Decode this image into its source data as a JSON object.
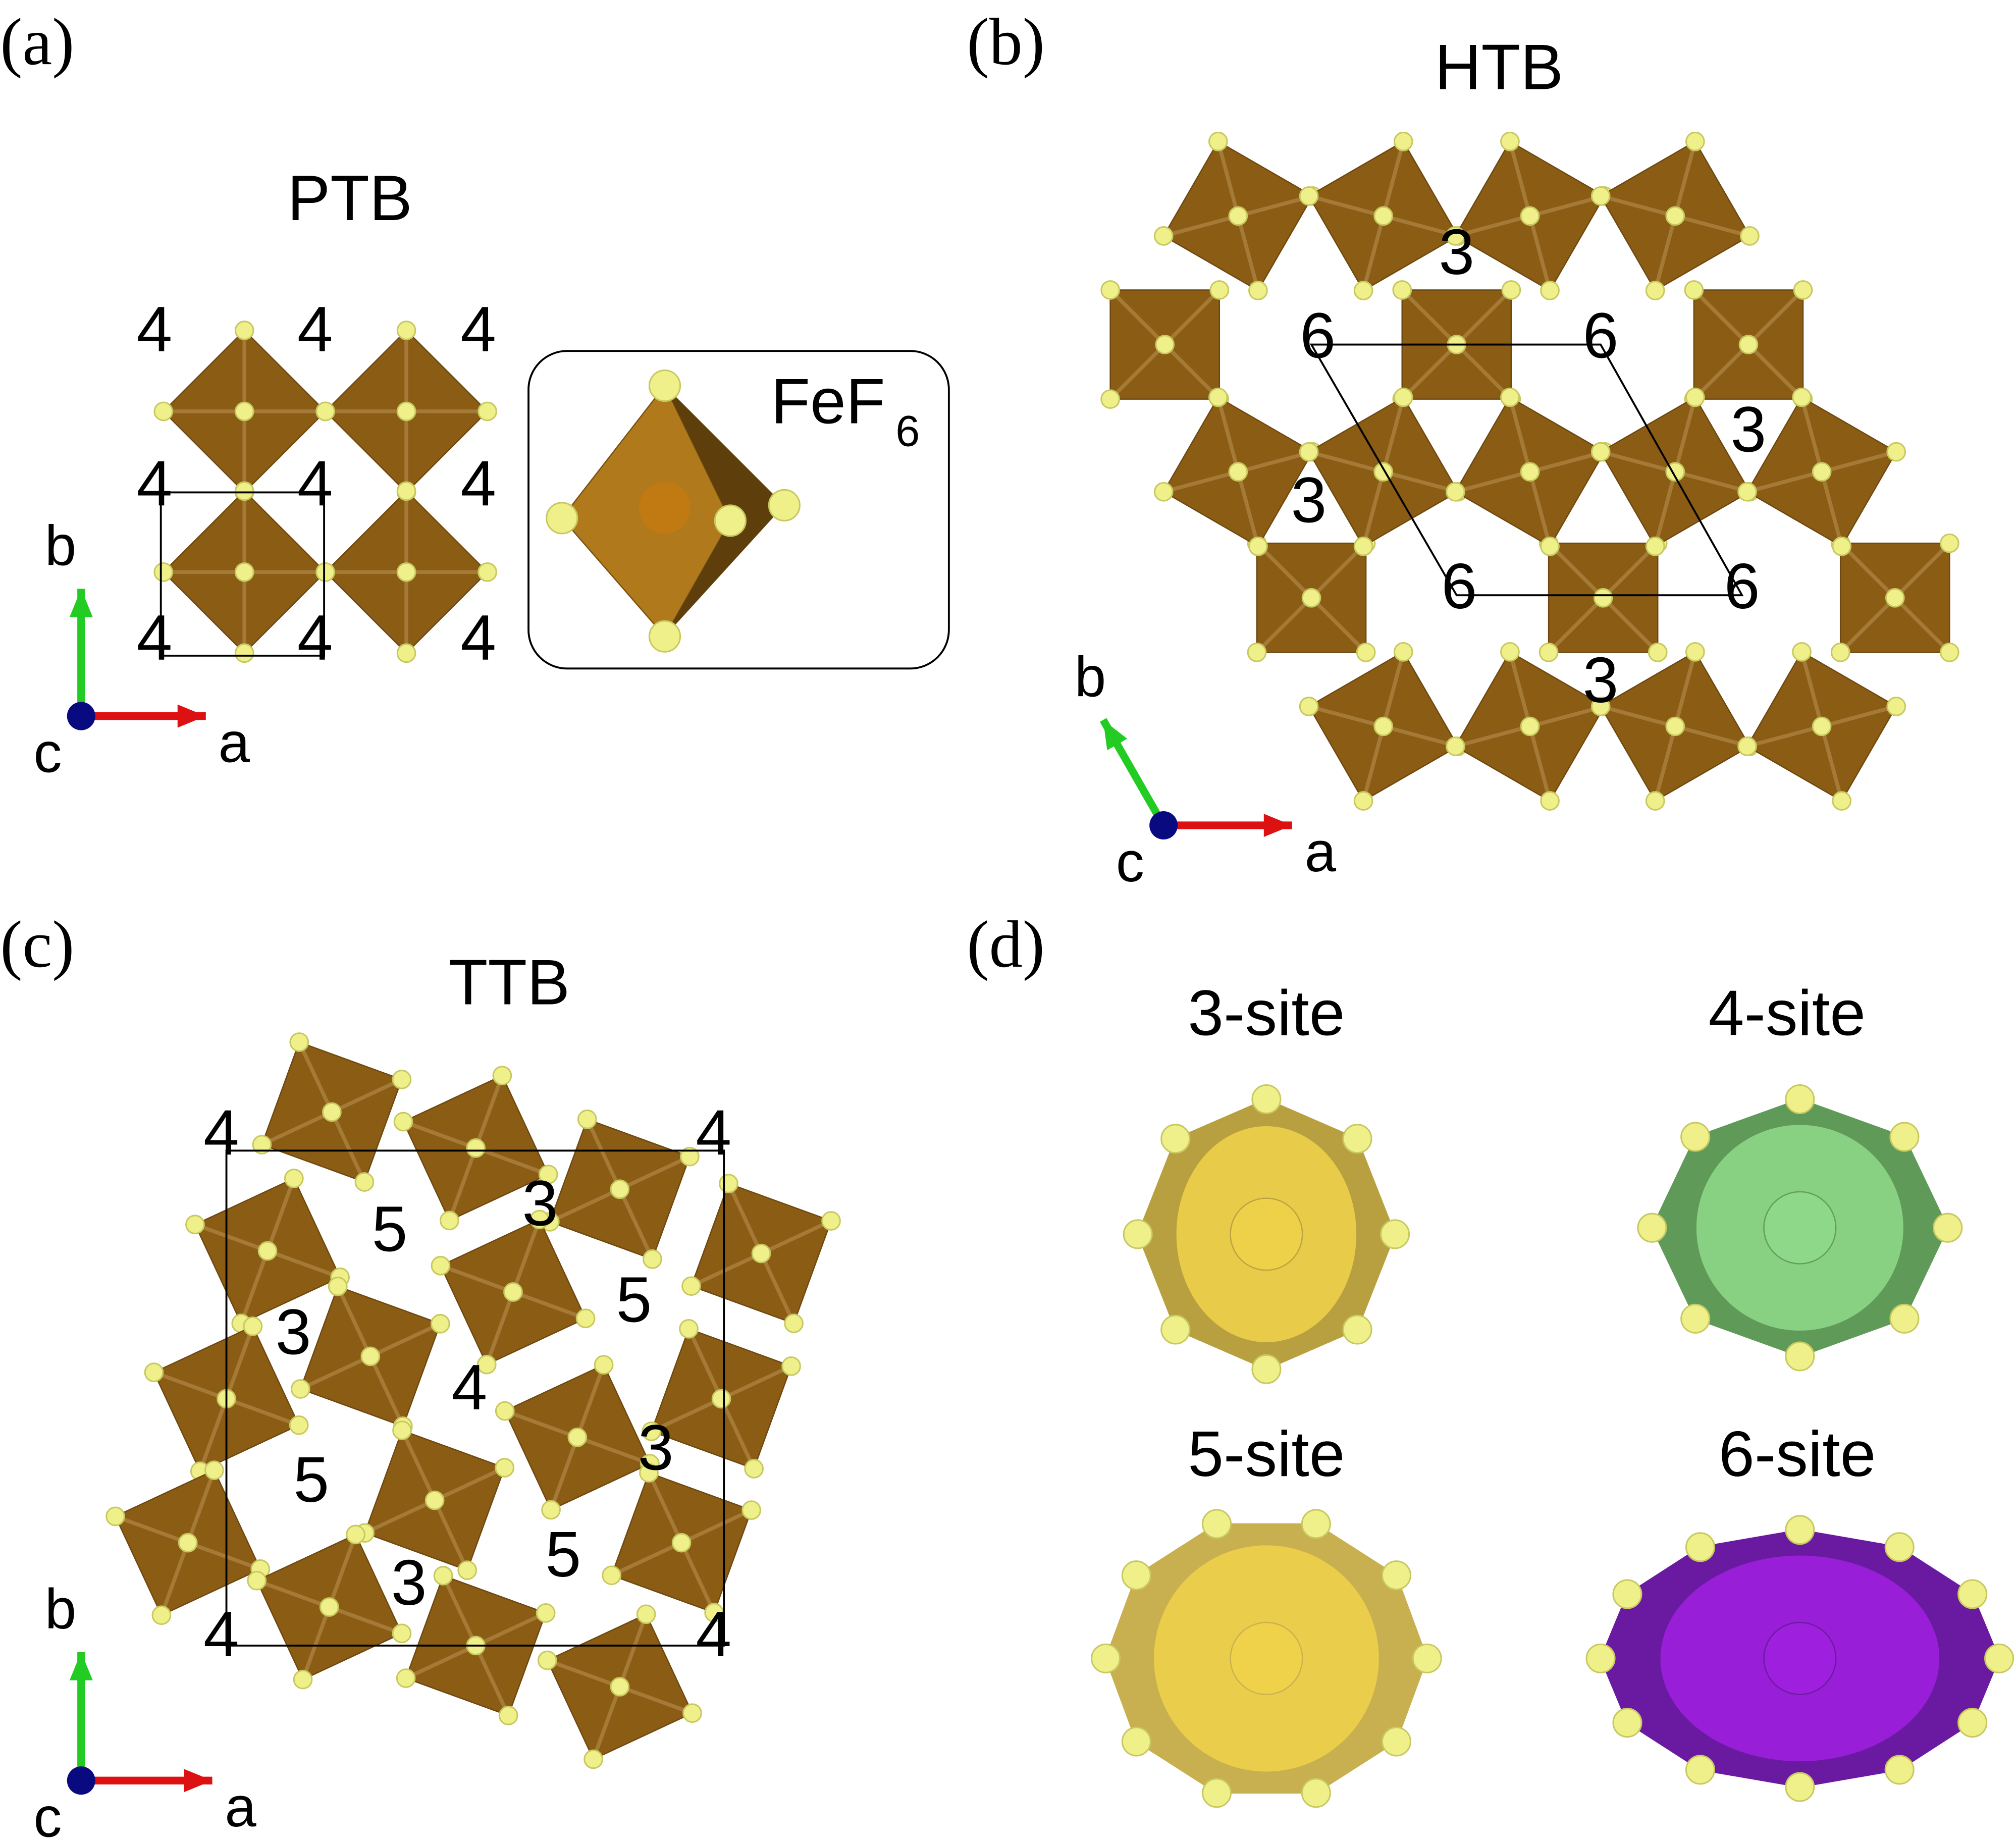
{
  "panels": [
    {
      "label": "(a)",
      "title": "PTB",
      "site_labels": [
        "4",
        "4",
        "4",
        "4",
        "4",
        "4",
        "4",
        "4",
        "4"
      ],
      "inset": {
        "text": "FeF",
        "subscript": "6"
      },
      "axes": {
        "b": "b",
        "c": "c",
        "a": "a"
      }
    },
    {
      "label": "(b)",
      "title": "HTB",
      "site_labels": [
        "3",
        "6",
        "6",
        "3",
        "3",
        "6",
        "6",
        "3"
      ],
      "axes": {
        "b": "b",
        "c": "c",
        "a": "a"
      }
    },
    {
      "label": "(c)",
      "title": "TTB",
      "site_labels": [
        "4",
        "4",
        "5",
        "3",
        "5",
        "3",
        "4",
        "3",
        "5",
        "5",
        "3",
        "4",
        "4"
      ],
      "axes": {
        "b": "b",
        "c": "c",
        "a": "a"
      }
    },
    {
      "label": "(d)",
      "sites": [
        "3-site",
        "4-site",
        "5-site",
        "6-site"
      ]
    }
  ]
}
